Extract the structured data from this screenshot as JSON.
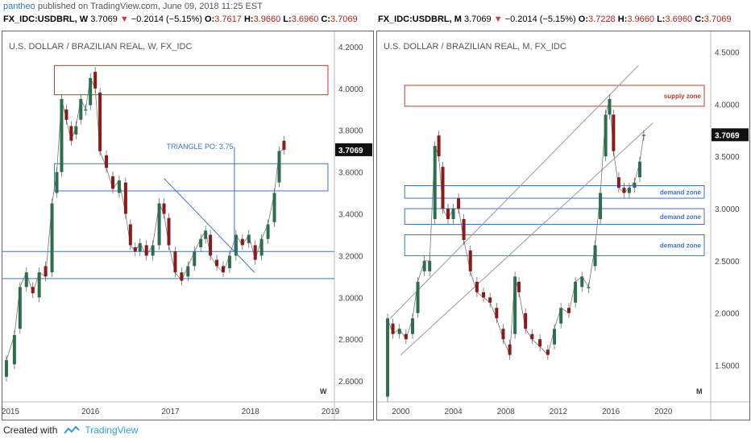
{
  "page": {
    "author": "pantheo",
    "published_text": "published on TradingView.com, June 09, 2018 11:25 EST",
    "footer_created": "Created with",
    "footer_brand": "TradingView"
  },
  "colors": {
    "up": "#2e6e4e",
    "down": "#8b1a1a",
    "zone_red": "#c0392b",
    "zone_blue": "#3b73c8",
    "trend": "#999999"
  },
  "chart_data": [
    {
      "type": "candlestick",
      "symbol": "FX_IDC:USDBRL",
      "interval": "W",
      "header": {
        "last": "3.7069",
        "change": "−0.2014 (−5.15%)",
        "O": "3.7617",
        "H": "3.9660",
        "L": "3.6960",
        "C": "3.7069"
      },
      "title": "U.S. DOLLAR / BRAZILIAN REAL, W, FX_IDC",
      "y_ticks": [
        "4.2000",
        "4.0000",
        "3.8000",
        "3.6000",
        "3.4000",
        "3.2000",
        "3.0000",
        "2.8000",
        "2.6000"
      ],
      "x_ticks": [
        "2015",
        "2016",
        "2017",
        "2018",
        "2019"
      ],
      "ylim": [
        2.5,
        4.25
      ],
      "xlim": [
        2014.9,
        2019.05
      ],
      "last_price_label": "3.7069",
      "interval_mark": "W",
      "series": [
        [
          2014.95,
          2.62,
          2.7
        ],
        [
          2015.05,
          2.68,
          2.82
        ],
        [
          2015.12,
          2.85,
          3.05
        ],
        [
          2015.2,
          3.05,
          3.12
        ],
        [
          2015.28,
          3.05,
          3.02
        ],
        [
          2015.36,
          3.0,
          3.12
        ],
        [
          2015.44,
          3.15,
          3.1
        ],
        [
          2015.52,
          3.12,
          3.45
        ],
        [
          2015.58,
          3.5,
          3.6
        ],
        [
          2015.64,
          3.6,
          3.95
        ],
        [
          2015.7,
          3.9,
          3.85
        ],
        [
          2015.76,
          3.82,
          3.75
        ],
        [
          2015.82,
          3.78,
          3.82
        ],
        [
          2015.88,
          3.85,
          3.95
        ],
        [
          2015.94,
          3.9,
          3.9
        ],
        [
          2016.0,
          3.92,
          4.05
        ],
        [
          2016.06,
          4.08,
          4.0
        ],
        [
          2016.12,
          3.98,
          3.7
        ],
        [
          2016.2,
          3.68,
          3.62
        ],
        [
          2016.28,
          3.58,
          3.52
        ],
        [
          2016.36,
          3.5,
          3.56
        ],
        [
          2016.44,
          3.55,
          3.4
        ],
        [
          2016.5,
          3.35,
          3.25
        ],
        [
          2016.56,
          3.24,
          3.22
        ],
        [
          2016.62,
          3.22,
          3.26
        ],
        [
          2016.7,
          3.25,
          3.2
        ],
        [
          2016.78,
          3.2,
          3.25
        ],
        [
          2016.86,
          3.25,
          3.45
        ],
        [
          2016.92,
          3.45,
          3.4
        ],
        [
          2016.98,
          3.38,
          3.25
        ],
        [
          2017.06,
          3.22,
          3.12
        ],
        [
          2017.14,
          3.12,
          3.08
        ],
        [
          2017.22,
          3.1,
          3.15
        ],
        [
          2017.3,
          3.15,
          3.22
        ],
        [
          2017.38,
          3.24,
          3.28
        ],
        [
          2017.44,
          3.28,
          3.32
        ],
        [
          2017.5,
          3.3,
          3.2
        ],
        [
          2017.58,
          3.18,
          3.15
        ],
        [
          2017.66,
          3.15,
          3.12
        ],
        [
          2017.74,
          3.14,
          3.2
        ],
        [
          2017.82,
          3.2,
          3.3
        ],
        [
          2017.9,
          3.28,
          3.25
        ],
        [
          2017.98,
          3.26,
          3.3
        ],
        [
          2018.06,
          3.25,
          3.18
        ],
        [
          2018.14,
          3.2,
          3.28
        ],
        [
          2018.22,
          3.28,
          3.35
        ],
        [
          2018.3,
          3.36,
          3.5
        ],
        [
          2018.36,
          3.55,
          3.7
        ],
        [
          2018.42,
          3.75,
          3.7069
        ]
      ],
      "zones": [
        {
          "kind": "resistance",
          "y1": 3.97,
          "y2": 4.11,
          "x1": 2015.55,
          "x2": 2019.0
        },
        {
          "kind": "support",
          "y1": 3.51,
          "y2": 3.64,
          "x1": 2015.55,
          "x2": 2019.0
        }
      ],
      "hlines": [
        3.22,
        3.09
      ],
      "annotation": {
        "text": "TRIANGLE PO: 3.75",
        "x": 2016.95,
        "y": 3.71
      }
    },
    {
      "type": "candlestick",
      "symbol": "FX_IDC:USDBRL",
      "interval": "M",
      "header": {
        "last": "3.7069",
        "change": "−0.2014 (−5.15%)",
        "O": "3.7228",
        "H": "3.9660",
        "L": "3.6960",
        "C": "3.7069"
      },
      "title": "U.S. DOLLAR / BRAZILIAN REAL, M, FX_IDC",
      "y_ticks": [
        "4.5000",
        "4.0000",
        "3.5000",
        "3.0000",
        "2.5000",
        "2.0000",
        "1.5000"
      ],
      "x_ticks": [
        "2000",
        "2004",
        "2008",
        "2012",
        "2016",
        "2020"
      ],
      "ylim": [
        1.15,
        4.65
      ],
      "xlim": [
        1998.2,
        2023.6
      ],
      "last_price_label": "3.7069",
      "interval_mark": "M",
      "series": [
        [
          1999.0,
          1.2,
          1.95
        ],
        [
          1999.4,
          1.9,
          1.8
        ],
        [
          1999.9,
          1.8,
          1.85
        ],
        [
          2000.4,
          1.8,
          1.75
        ],
        [
          2000.9,
          1.8,
          1.95
        ],
        [
          2001.3,
          2.0,
          2.3
        ],
        [
          2001.8,
          2.4,
          2.5
        ],
        [
          2002.2,
          2.4,
          2.5
        ],
        [
          2002.6,
          2.9,
          3.6
        ],
        [
          2002.9,
          3.7,
          3.5
        ],
        [
          2003.2,
          3.4,
          3.0
        ],
        [
          2003.6,
          3.0,
          2.9
        ],
        [
          2004.0,
          2.9,
          3.0
        ],
        [
          2004.4,
          3.1,
          3.0
        ],
        [
          2004.8,
          2.9,
          2.7
        ],
        [
          2005.3,
          2.6,
          2.4
        ],
        [
          2005.8,
          2.3,
          2.2
        ],
        [
          2006.3,
          2.2,
          2.15
        ],
        [
          2006.8,
          2.15,
          2.1
        ],
        [
          2007.3,
          2.05,
          1.95
        ],
        [
          2007.8,
          1.85,
          1.75
        ],
        [
          2008.3,
          1.7,
          1.6
        ],
        [
          2008.7,
          1.8,
          2.35
        ],
        [
          2009.0,
          2.3,
          2.2
        ],
        [
          2009.5,
          2.0,
          1.85
        ],
        [
          2010.0,
          1.8,
          1.75
        ],
        [
          2010.6,
          1.75,
          1.68
        ],
        [
          2011.2,
          1.65,
          1.6
        ],
        [
          2011.7,
          1.7,
          1.85
        ],
        [
          2012.2,
          1.9,
          2.05
        ],
        [
          2012.8,
          2.05,
          2.0
        ],
        [
          2013.3,
          2.1,
          2.3
        ],
        [
          2013.8,
          2.25,
          2.35
        ],
        [
          2014.3,
          2.25,
          2.25
        ],
        [
          2014.8,
          2.45,
          2.65
        ],
        [
          2015.2,
          2.9,
          3.15
        ],
        [
          2015.6,
          3.5,
          3.9
        ],
        [
          2015.9,
          3.9,
          4.05
        ],
        [
          2016.2,
          3.9,
          3.55
        ],
        [
          2016.6,
          3.3,
          3.2
        ],
        [
          2017.0,
          3.2,
          3.15
        ],
        [
          2017.4,
          3.15,
          3.2
        ],
        [
          2017.8,
          3.2,
          3.25
        ],
        [
          2018.2,
          3.3,
          3.45
        ],
        [
          2018.5,
          3.7,
          3.7069
        ]
      ],
      "zones": [
        {
          "label": "supply zone",
          "kind": "supply",
          "y1": 3.98,
          "y2": 4.18,
          "x1": 2000.3,
          "x2": 2023.3
        },
        {
          "label": "demand zone",
          "kind": "demand",
          "y1": 3.1,
          "y2": 3.22,
          "x1": 2000.3,
          "x2": 2023.3
        },
        {
          "label": "demand zone",
          "kind": "demand",
          "y1": 2.85,
          "y2": 3.0,
          "x1": 2000.3,
          "x2": 2023.3
        },
        {
          "label": "demand zone",
          "kind": "demand",
          "y1": 2.55,
          "y2": 2.75,
          "x1": 2000.3,
          "x2": 2023.3
        }
      ],
      "trendlines": [
        {
          "x1": 1999.2,
          "y1": 1.95,
          "x2": 2018.1,
          "y2": 4.37
        },
        {
          "x1": 2000.0,
          "y1": 1.6,
          "x2": 2019.2,
          "y2": 3.82
        }
      ]
    }
  ]
}
